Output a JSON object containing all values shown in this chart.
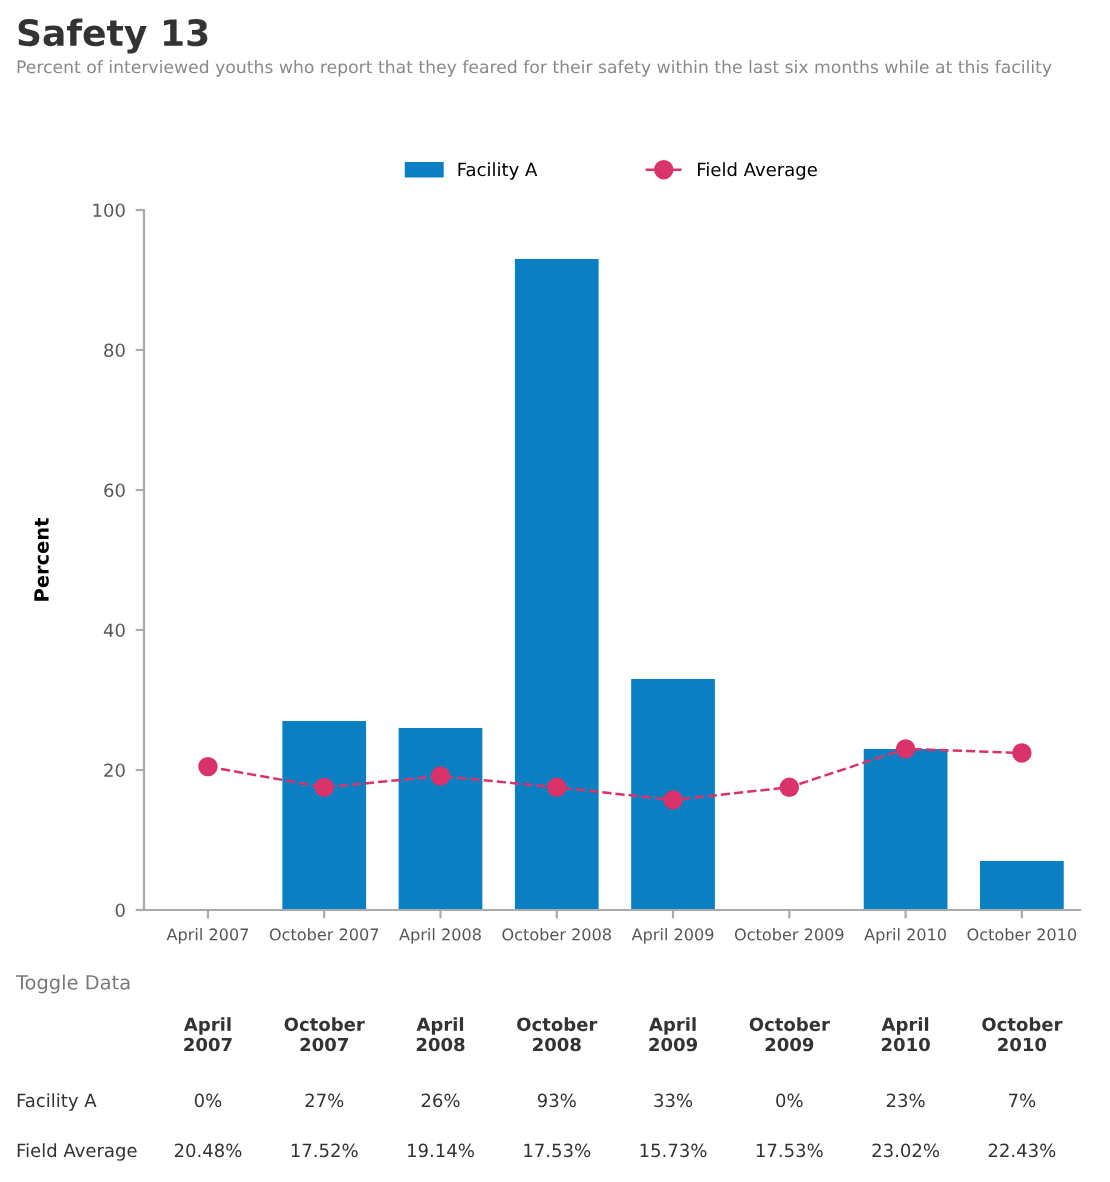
{
  "chart_data": {
    "type": "bar",
    "title": "Safety 13",
    "subtitle": "Percent of interviewed youths who report that they feared for their safety within the last six months while at this facility",
    "ylabel": "Percent",
    "categories": [
      "April 2007",
      "October 2007",
      "April 2008",
      "October 2008",
      "April 2009",
      "October 2009",
      "April 2010",
      "October 2010"
    ],
    "series": [
      {
        "name": "Facility A",
        "color": "#0a7fc2",
        "values": [
          0,
          27,
          26,
          93,
          33,
          0,
          23,
          7
        ],
        "value_labels": [
          "0%",
          "27%",
          "26%",
          "93%",
          "33%",
          "0%",
          "23%",
          "7%"
        ]
      },
      {
        "name": "Field Average",
        "type": "line",
        "color": "#d9336a",
        "marker": "circle",
        "line_style": "dashed",
        "values": [
          20.48,
          17.52,
          19.14,
          17.53,
          15.73,
          17.53,
          23.02,
          22.43
        ],
        "value_labels": [
          "20.48%",
          "17.52%",
          "19.14%",
          "17.53%",
          "15.73%",
          "17.53%",
          "23.02%",
          "22.43%"
        ]
      }
    ],
    "ylim": [
      0,
      100
    ],
    "yticks": [
      0,
      20,
      40,
      60,
      80,
      100
    ],
    "grid": false,
    "legend": "top",
    "annotations": [
      "Toggle Data"
    ]
  }
}
